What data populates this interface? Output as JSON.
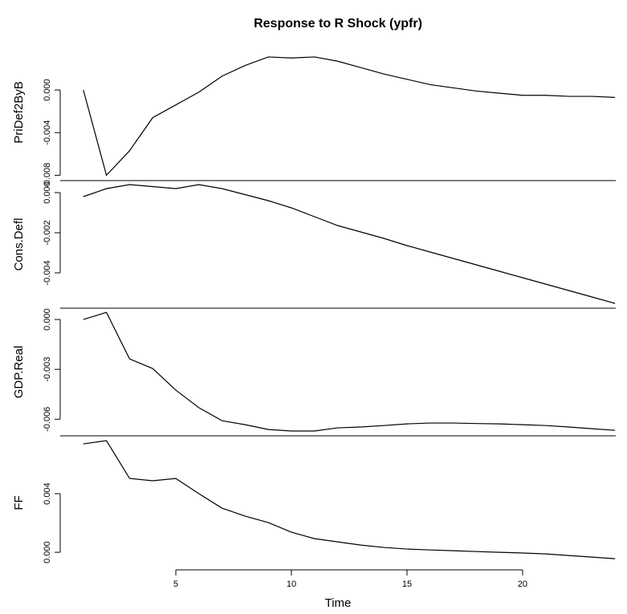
{
  "chart_data": {
    "type": "line",
    "title": "Response to R Shock (ypfr)",
    "x_label": "Time",
    "x": [
      1,
      2,
      3,
      4,
      5,
      6,
      7,
      8,
      9,
      10,
      11,
      12,
      13,
      14,
      15,
      16,
      17,
      18,
      19,
      20,
      21,
      22,
      23,
      24
    ],
    "xlim": [
      0,
      24.03
    ],
    "xticks": [
      5,
      10,
      15,
      20
    ],
    "color": "#000000",
    "panels": [
      {
        "y_label": "PriDef2ByB",
        "values": [
          0.0,
          -0.008,
          -0.0057,
          -0.0026,
          -0.0014,
          -0.0002,
          0.0013,
          0.0023,
          0.0031,
          0.003,
          0.0031,
          0.0027,
          0.0021,
          0.0015,
          0.001,
          0.0005,
          0.0002,
          -0.0001,
          -0.0003,
          -0.0005,
          -0.0005,
          -0.0006,
          -0.0006,
          -0.0007
        ],
        "ylim": [
          -0.0085,
          0.0043
        ],
        "yticks": [
          {
            "value": 0.0,
            "label": "0.000"
          },
          {
            "value": -0.004,
            "label": "-0.004"
          },
          {
            "value": -0.008,
            "label": "-0.008"
          }
        ]
      },
      {
        "y_label": "Cons.Defl",
        "values": [
          -0.0002,
          0.0002,
          0.0004,
          0.0003,
          0.0002,
          0.0004,
          0.0002,
          -0.0001,
          -0.0004,
          -0.00076,
          -0.0012,
          -0.00164,
          -0.00196,
          -0.00228,
          -0.00264,
          -0.00296,
          -0.00328,
          -0.0036,
          -0.00392,
          -0.00424,
          -0.00456,
          -0.00488,
          -0.0052,
          -0.00552
        ],
        "ylim": [
          -0.00576,
          0.0006
        ],
        "yticks": [
          {
            "value": 0.0,
            "label": "0.000"
          },
          {
            "value": -0.002,
            "label": "-0.002"
          },
          {
            "value": -0.004,
            "label": "-0.004"
          }
        ]
      },
      {
        "y_label": "GDP.Real",
        "values": [
          0.0,
          0.00043,
          -0.00237,
          -0.00295,
          -0.00425,
          -0.00531,
          -0.00609,
          -0.00633,
          -0.00662,
          -0.00671,
          -0.00671,
          -0.00652,
          -0.00647,
          -0.00638,
          -0.00628,
          -0.00623,
          -0.00623,
          -0.00626,
          -0.00628,
          -0.00633,
          -0.00638,
          -0.00647,
          -0.00657,
          -0.00667
        ],
        "ylim": [
          -0.007,
          0.00068
        ],
        "yticks": [
          {
            "value": 0.0,
            "label": "0.000"
          },
          {
            "value": -0.003,
            "label": "-0.003"
          },
          {
            "value": -0.006,
            "label": "-0.006"
          }
        ]
      },
      {
        "y_label": "FF",
        "values": [
          0.0074,
          0.00762,
          0.00504,
          0.00488,
          0.00504,
          0.004,
          0.00301,
          0.00247,
          0.00203,
          0.00137,
          0.00093,
          0.00071,
          0.00049,
          0.00033,
          0.00022,
          0.00016,
          0.00011,
          5e-05,
          0.0,
          -5e-05,
          -0.00011,
          -0.00022,
          -0.00033,
          -0.00044
        ],
        "ylim": [
          -0.0012,
          0.00795
        ],
        "yticks": [
          {
            "value": 0.0,
            "label": "0.000"
          },
          {
            "value": 0.004,
            "label": "0.004"
          }
        ]
      }
    ]
  }
}
